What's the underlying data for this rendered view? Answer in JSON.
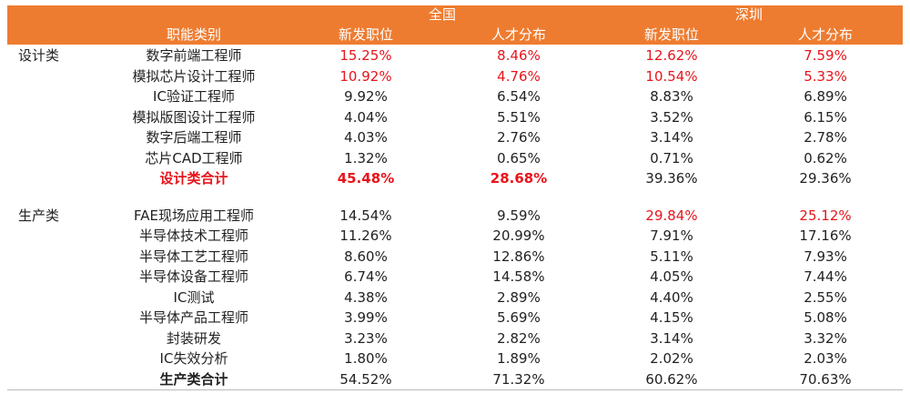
{
  "colors": {
    "header_bg": "#ee7c30",
    "highlight": "#e8141b"
  },
  "header": {
    "region_national": "全国",
    "region_shenzhen": "深圳",
    "col_category": "职能类别",
    "col_new_jobs_1": "新发职位",
    "col_talent_1": "人才分布",
    "col_new_jobs_2": "新发职位",
    "col_talent_2": "人才分布"
  },
  "design": {
    "group_label": "设计类",
    "rows": [
      {
        "name": "数字前端工程师",
        "v": [
          "15.25%",
          "8.46%",
          "12.62%",
          "7.59%"
        ]
      },
      {
        "name": "模拟芯片设计工程师",
        "v": [
          "10.92%",
          "4.76%",
          "10.54%",
          "5.33%"
        ]
      },
      {
        "name": "IC验证工程师",
        "v": [
          "9.92%",
          "6.54%",
          "8.83%",
          "6.89%"
        ]
      },
      {
        "name": "模拟版图设计工程师",
        "v": [
          "4.04%",
          "5.51%",
          "3.52%",
          "6.15%"
        ]
      },
      {
        "name": "数字后端工程师",
        "v": [
          "4.03%",
          "2.76%",
          "3.14%",
          "2.78%"
        ]
      },
      {
        "name": "芯片CAD工程师",
        "v": [
          "1.32%",
          "0.65%",
          "0.71%",
          "0.62%"
        ]
      }
    ],
    "total": {
      "name": "设计类合计",
      "v": [
        "45.48%",
        "28.68%",
        "39.36%",
        "29.36%"
      ]
    }
  },
  "production": {
    "group_label": "生产类",
    "rows": [
      {
        "name": "FAE现场应用工程师",
        "v": [
          "14.54%",
          "9.59%",
          "29.84%",
          "25.12%"
        ]
      },
      {
        "name": "半导体技术工程师",
        "v": [
          "11.26%",
          "20.99%",
          "7.91%",
          "17.16%"
        ]
      },
      {
        "name": "半导体工艺工程师",
        "v": [
          "8.60%",
          "12.86%",
          "5.11%",
          "7.93%"
        ]
      },
      {
        "name": "半导体设备工程师",
        "v": [
          "6.74%",
          "14.58%",
          "4.05%",
          "7.44%"
        ]
      },
      {
        "name": "IC测试",
        "v": [
          "4.38%",
          "2.89%",
          "4.40%",
          "2.55%"
        ]
      },
      {
        "name": "半导体产品工程师",
        "v": [
          "3.99%",
          "5.69%",
          "4.15%",
          "5.08%"
        ]
      },
      {
        "name": "封装研发",
        "v": [
          "3.23%",
          "2.82%",
          "3.14%",
          "3.32%"
        ]
      },
      {
        "name": "IC失效分析",
        "v": [
          "1.80%",
          "1.89%",
          "2.02%",
          "2.03%"
        ]
      }
    ],
    "total": {
      "name": "生产类合计",
      "v": [
        "54.52%",
        "71.32%",
        "60.62%",
        "70.63%"
      ]
    }
  }
}
